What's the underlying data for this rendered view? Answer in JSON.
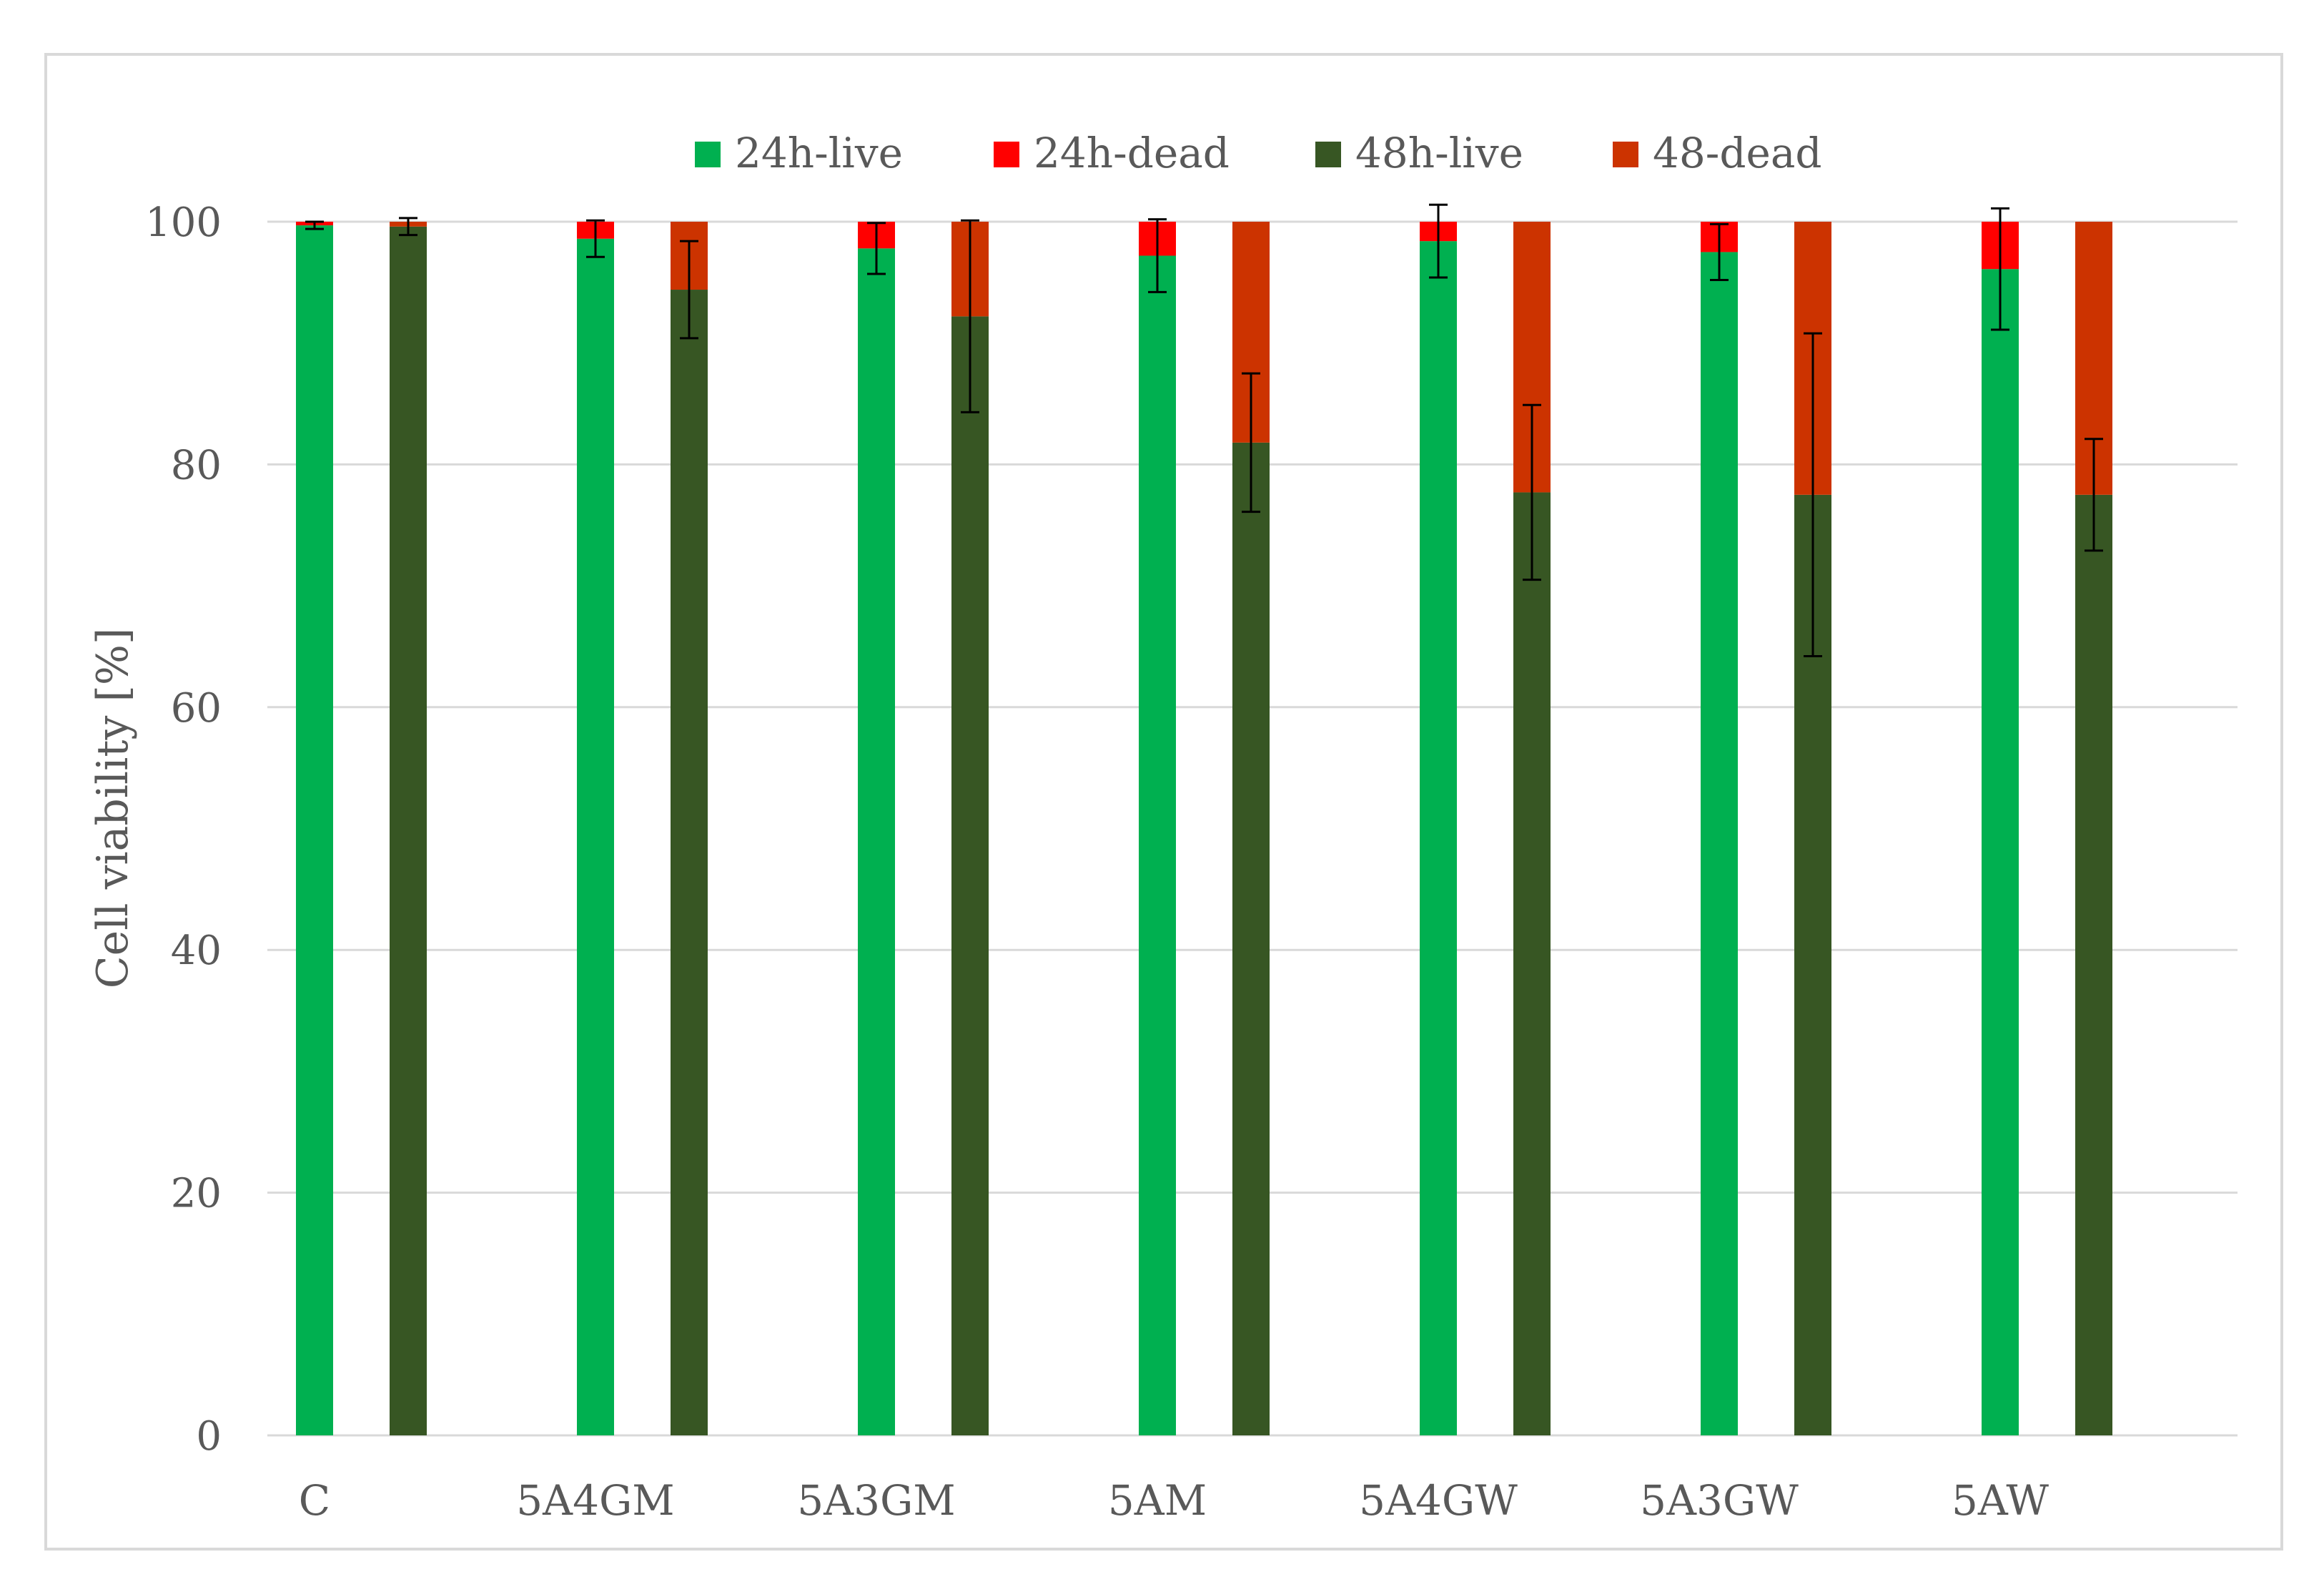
{
  "chart_data": {
    "type": "bar",
    "stacked": true,
    "title": "",
    "xlabel": "",
    "ylabel": "Cell viability  [%]",
    "ylim": [
      0,
      100
    ],
    "yticks": [
      0,
      20,
      40,
      60,
      80,
      100
    ],
    "grid": true,
    "legend_position": "top",
    "categories": [
      "C",
      "5A4GM",
      "5A3GM",
      "5AM",
      "5A4GW",
      "5A3GW",
      "5AW"
    ],
    "series": [
      {
        "name": "24h-live",
        "color": "#00b050",
        "group": "24h",
        "values": [
          99.7,
          98.6,
          97.8,
          97.2,
          98.4,
          97.5,
          96.1
        ],
        "error": [
          0.3,
          1.5,
          2.1,
          3.0,
          3.0,
          2.3,
          5.0
        ]
      },
      {
        "name": "24h-dead",
        "color": "#ff0000",
        "group": "24h",
        "values": [
          0.3,
          1.4,
          2.2,
          2.8,
          1.6,
          2.5,
          3.9
        ]
      },
      {
        "name": "48h-live",
        "color": "#375623",
        "group": "48h",
        "values": [
          99.6,
          94.4,
          92.2,
          81.8,
          77.7,
          77.5,
          77.5
        ],
        "error": [
          0.7,
          4.0,
          7.9,
          5.7,
          7.2,
          13.3,
          4.6
        ]
      },
      {
        "name": "48-dead",
        "color": "#cc3300",
        "group": "48h",
        "values": [
          0.4,
          5.6,
          7.8,
          18.2,
          22.3,
          22.5,
          22.5
        ]
      }
    ]
  }
}
